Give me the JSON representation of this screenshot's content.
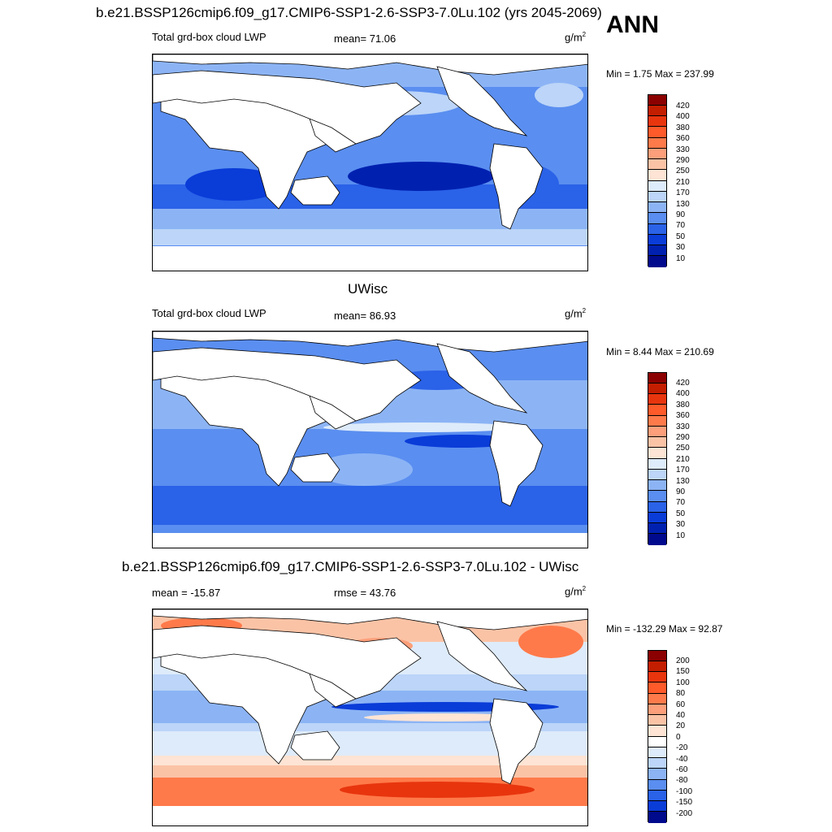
{
  "header": {
    "case_title": "b.e21.BSSP126cmip6.f09_g17.CMIP6-SSP1-2.6-SSP3-7.0Lu.102 (yrs 2045-2069)",
    "season": "ANN"
  },
  "panels": [
    {
      "variable": "Total grd-box cloud LWP",
      "stat": "mean=  71.06",
      "units": "g/m",
      "units_sup": "2",
      "minmax": "Min =   1.75 Max = 237.99",
      "colorbar_labels": [
        "420",
        "400",
        "380",
        "360",
        "330",
        "290",
        "250",
        "210",
        "170",
        "130",
        "90",
        "70",
        "50",
        "30",
        "10"
      ],
      "colorbar_colors": [
        "#8b0000",
        "#c41e00",
        "#e8350e",
        "#ff5a2a",
        "#ff7a4a",
        "#fc9f7a",
        "#fbc3a6",
        "#fde4d4",
        "#deebfa",
        "#bcd5f8",
        "#8cb4f5",
        "#5a8ef0",
        "#2a62e8",
        "#0a3cd8",
        "#0021b0",
        "#000a8c"
      ]
    },
    {
      "panel_title": "UWisc",
      "variable": "Total grd-box cloud LWP",
      "stat": "mean=  86.93",
      "units": "g/m",
      "units_sup": "2",
      "minmax": "Min =   8.44 Max = 210.69",
      "colorbar_labels": [
        "420",
        "400",
        "380",
        "360",
        "330",
        "290",
        "250",
        "210",
        "170",
        "130",
        "90",
        "70",
        "50",
        "30",
        "10"
      ],
      "colorbar_colors": [
        "#8b0000",
        "#c41e00",
        "#e8350e",
        "#ff5a2a",
        "#ff7a4a",
        "#fc9f7a",
        "#fbc3a6",
        "#fde4d4",
        "#deebfa",
        "#bcd5f8",
        "#8cb4f5",
        "#5a8ef0",
        "#2a62e8",
        "#0a3cd8",
        "#0021b0",
        "#000a8c"
      ]
    },
    {
      "panel_title": "b.e21.BSSP126cmip6.f09_g17.CMIP6-SSP1-2.6-SSP3-7.0Lu.102 - UWisc",
      "variable": "mean = -15.87",
      "stat": "rmse =  43.76",
      "units": "g/m",
      "units_sup": "2",
      "minmax": "Min = -132.29 Max =  92.87",
      "colorbar_labels": [
        "200",
        "150",
        "100",
        "80",
        "60",
        "40",
        "20",
        "0",
        "-20",
        "-40",
        "-60",
        "-80",
        "-100",
        "-150",
        "-200"
      ],
      "colorbar_colors": [
        "#8b0000",
        "#c41e00",
        "#e8350e",
        "#ff5a2a",
        "#ff7a4a",
        "#fc9f7a",
        "#fbc3a6",
        "#fde4d4",
        "#ffffff",
        "#deebfa",
        "#bcd5f8",
        "#8cb4f5",
        "#5a8ef0",
        "#2a62e8",
        "#0a3cd8",
        "#000a8c"
      ]
    }
  ]
}
